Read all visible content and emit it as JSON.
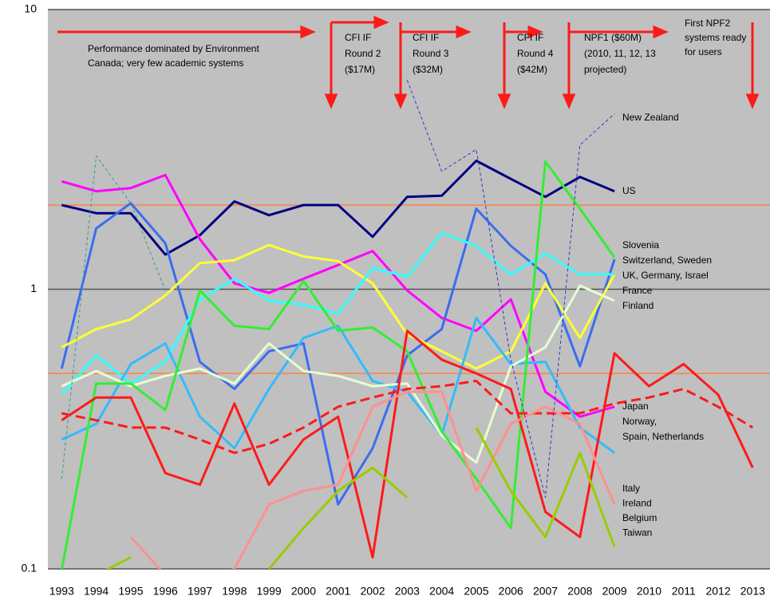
{
  "chart_data": {
    "type": "line",
    "log_y": true,
    "background": "#c0c0c0",
    "x": [
      1993,
      1994,
      1995,
      1996,
      1997,
      1998,
      1999,
      2000,
      2001,
      2002,
      2003,
      2004,
      2005,
      2006,
      2007,
      2008,
      2009,
      2010,
      2011,
      2012,
      2013
    ],
    "xlim": [
      1992.6,
      2013.5
    ],
    "xticks": [
      1993,
      1994,
      1995,
      1996,
      1997,
      1998,
      1999,
      2000,
      2001,
      2002,
      2003,
      2004,
      2005,
      2006,
      2007,
      2008,
      2009,
      2010,
      2011,
      2012,
      2013
    ],
    "ylim": [
      0.1,
      10
    ],
    "yticks": [
      0.1,
      1,
      10
    ],
    "grid": true,
    "grid_color": "#555555",
    "reference_lines": [
      2,
      0.5
    ],
    "reference_color": "#ff8040",
    "series": [
      {
        "color": "#000080",
        "style": "solid",
        "values": [
          2.0,
          1.87,
          1.87,
          1.33,
          1.56,
          2.06,
          1.84,
          2.0,
          2.0,
          1.54,
          2.14,
          2.16,
          2.88,
          2.48,
          2.14,
          2.52,
          2.24,
          null,
          null,
          null,
          null
        ]
      },
      {
        "color": "#ff00ff",
        "style": "solid",
        "values": [
          2.43,
          2.24,
          2.3,
          2.56,
          1.51,
          1.05,
          0.97,
          1.09,
          1.22,
          1.37,
          0.99,
          0.79,
          0.71,
          0.92,
          0.43,
          0.35,
          0.38,
          null,
          null,
          null,
          null
        ]
      },
      {
        "color": "#3a6df0",
        "style": "solid",
        "values": [
          0.52,
          1.65,
          2.03,
          1.46,
          0.55,
          0.44,
          0.6,
          0.64,
          0.17,
          0.27,
          0.58,
          0.72,
          1.94,
          1.43,
          1.13,
          0.53,
          1.28,
          null,
          null,
          null,
          null
        ]
      },
      {
        "color": "#ffff33",
        "style": "solid",
        "values": [
          0.62,
          0.72,
          0.78,
          0.95,
          1.24,
          1.27,
          1.44,
          1.31,
          1.26,
          1.05,
          0.69,
          0.6,
          0.52,
          0.6,
          1.05,
          0.67,
          1.13,
          null,
          null,
          null,
          null
        ]
      },
      {
        "color": "#33ffff",
        "style": "solid",
        "values": [
          0.42,
          0.58,
          0.46,
          0.55,
          0.92,
          1.09,
          0.91,
          0.88,
          0.82,
          1.19,
          1.11,
          1.59,
          1.43,
          1.13,
          1.34,
          1.13,
          1.13,
          null,
          null,
          null,
          null
        ]
      },
      {
        "color": "#33bbff",
        "style": "solid",
        "values": [
          0.29,
          0.33,
          0.54,
          0.64,
          0.35,
          0.27,
          0.44,
          0.67,
          0.74,
          0.47,
          0.43,
          0.3,
          0.79,
          0.54,
          0.55,
          0.32,
          0.26,
          null,
          null,
          null,
          null
        ]
      },
      {
        "color": "#e4ffd0",
        "style": "solid",
        "values": [
          0.45,
          0.51,
          0.45,
          0.49,
          0.52,
          0.46,
          0.64,
          0.51,
          0.49,
          0.45,
          0.46,
          0.3,
          0.24,
          0.53,
          0.62,
          1.03,
          0.91,
          null,
          null,
          null,
          null
        ]
      },
      {
        "color": "#33ee33",
        "style": "solid",
        "values": [
          0.099,
          0.46,
          0.46,
          0.37,
          0.99,
          0.74,
          0.72,
          1.07,
          0.71,
          0.73,
          0.6,
          0.31,
          0.21,
          0.14,
          2.86,
          1.94,
          1.3,
          null,
          null,
          null,
          null
        ]
      },
      {
        "color": "#ff1a1a",
        "style": "solid",
        "values": [
          0.34,
          0.41,
          0.41,
          0.22,
          0.2,
          0.39,
          0.2,
          0.29,
          0.35,
          0.11,
          0.71,
          0.56,
          0.5,
          0.44,
          0.16,
          0.13,
          0.59,
          0.45,
          0.54,
          0.42,
          0.23
        ]
      },
      {
        "color": "#ff1a1a",
        "style": "dashed",
        "values": [
          0.36,
          0.34,
          0.32,
          0.32,
          0.29,
          0.26,
          0.28,
          0.32,
          0.38,
          0.41,
          0.44,
          0.45,
          0.47,
          0.36,
          0.36,
          0.36,
          0.39,
          0.41,
          0.44,
          0.38,
          0.32
        ]
      },
      {
        "color": "#ff9090",
        "style": "solid",
        "values": [
          null,
          null,
          0.13,
          0.095,
          0.09,
          0.1,
          0.17,
          0.19,
          0.2,
          0.38,
          0.43,
          0.43,
          0.19,
          0.33,
          0.38,
          0.33,
          0.17,
          null,
          null,
          null,
          null
        ]
      },
      {
        "color": "#99cc00",
        "style": "solid",
        "values": [
          null,
          0.095,
          0.11,
          null,
          null,
          null,
          0.1,
          0.14,
          0.19,
          0.23,
          0.18,
          null,
          0.32,
          0.19,
          0.13,
          0.26,
          0.12,
          null,
          null,
          null,
          null
        ]
      },
      {
        "color": "#3333cc",
        "style": "thin-dashed",
        "values": [
          null,
          null,
          null,
          null,
          null,
          null,
          null,
          null,
          null,
          null,
          5.6,
          2.64,
          3.16,
          0.56,
          0.18,
          3.28,
          4.24,
          null,
          null,
          null,
          null
        ]
      },
      {
        "color": "#339999",
        "style": "thin-dashed",
        "values": [
          0.21,
          3.0,
          2.03,
          0.99,
          null,
          null,
          null,
          null,
          null,
          null,
          null,
          null,
          null,
          null,
          null,
          null,
          null,
          null,
          null,
          null,
          null
        ]
      }
    ],
    "annotations": [
      {
        "lines": [
          "Performance dominated by Environment",
          "Canada; very few academic systems"
        ]
      },
      {
        "lines": [
          "CFI IF",
          "Round 2",
          "($17M)"
        ]
      },
      {
        "lines": [
          "CFI IF",
          "Round 3",
          "($32M)"
        ]
      },
      {
        "lines": [
          "CFI IF",
          "Round 4",
          "($42M)"
        ]
      },
      {
        "lines": [
          "NPF1 ($60M)",
          "(2010, 11, 12, 13",
          "projected)"
        ]
      },
      {
        "lines": [
          "First NPF2",
          "systems ready",
          "for users"
        ]
      },
      {
        "lines": [
          "New Zealand"
        ]
      },
      {
        "lines": [
          "US"
        ]
      },
      {
        "lines": [
          "Slovenia",
          "Switzerland, Sweden",
          "UK, Germany, Israel",
          "France",
          "Finland"
        ]
      },
      {
        "lines": [
          "Japan",
          "Norway,",
          "Spain, Netherlands"
        ]
      },
      {
        "lines": [
          "Italy",
          "Ireland",
          "Belgium",
          "Taiwan"
        ]
      }
    ]
  }
}
